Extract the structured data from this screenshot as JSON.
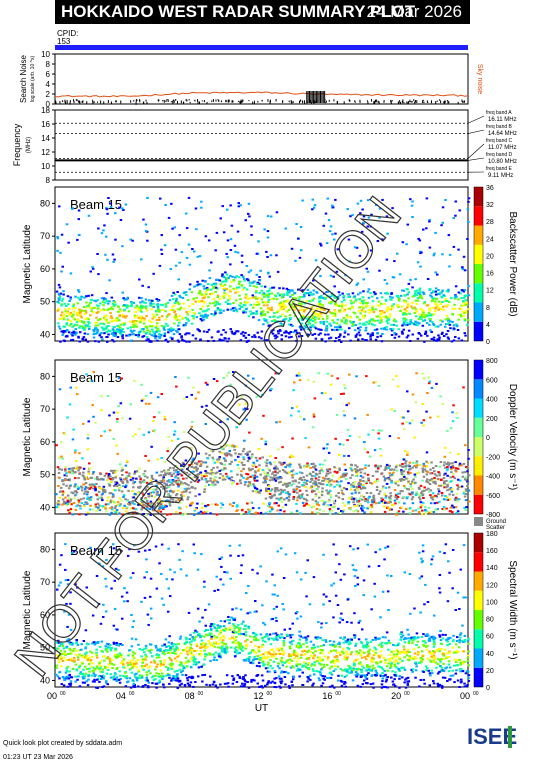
{
  "title": "HOKKAIDO WEST RADAR SUMMARY PLOT",
  "date": "24 Mar 2026",
  "cpid_label": "CPID:",
  "cpid_value": "153",
  "noise_panel": {
    "ylabel": "Search Noise",
    "ylabel_sub": "log scale (arb. 10 ^x)",
    "yticks": [
      "0",
      "2",
      "4",
      "6",
      "8",
      "10"
    ],
    "legend": "Sky noise"
  },
  "freq_panel": {
    "ylabel": "Frequency",
    "ylabel_sub": "(MHz)",
    "yticks": [
      "8",
      "10",
      "12",
      "14",
      "16",
      "18"
    ],
    "bands": [
      {
        "name": "freq band A",
        "value": "16.11 MHz"
      },
      {
        "name": "freq band B",
        "value": "14.64 MHz"
      },
      {
        "name": "freq band C",
        "value": "11.07 MHz"
      },
      {
        "name": "freq band D",
        "value": "10.80 MHz"
      },
      {
        "name": "freq band E",
        "value": "9.11 MHz"
      }
    ]
  },
  "panels": [
    {
      "beam": "Beam 15",
      "ylabel": "Magnetic Latitude",
      "colorbar_label": "Backscatter Power (dB)",
      "cbar_ticks": [
        "0",
        "4",
        "8",
        "12",
        "16",
        "20",
        "24",
        "28",
        "32",
        "36"
      ],
      "colors": [
        "#0000ff",
        "#00aaff",
        "#00ffaa",
        "#66ff00",
        "#ffff00",
        "#ffaa00",
        "#ff0000",
        "#aa0000"
      ]
    },
    {
      "beam": "Beam 15",
      "ylabel": "Magnetic Latitude",
      "colorbar_label": "Doppler Velocity (m s⁻¹)",
      "cbar_ticks": [
        "-800",
        "-600",
        "-400",
        "-200",
        "0",
        "200",
        "400",
        "600",
        "800"
      ],
      "colors": [
        "#ff0000",
        "#ff8800",
        "#ffee00",
        "#ccff66",
        "#66ff99",
        "#00ddff",
        "#0088ff",
        "#0000ff"
      ],
      "ground_scatter_label": "Ground",
      "ground_scatter_label2": "Scatter"
    },
    {
      "beam": "Beam 15",
      "ylabel": "Magnetic Latitude",
      "colorbar_label": "Spectral Width (m s⁻¹)",
      "cbar_ticks": [
        "0",
        "20",
        "40",
        "60",
        "80",
        "100",
        "120",
        "140",
        "160",
        "180"
      ],
      "colors": [
        "#0000ff",
        "#00aaff",
        "#00ffaa",
        "#66ff00",
        "#ffff00",
        "#ffaa00",
        "#ff0000",
        "#aa0000"
      ]
    }
  ],
  "xaxis": {
    "label": "UT",
    "ticks": [
      "00",
      "04",
      "08",
      "12",
      "16",
      "20",
      "00"
    ],
    "tick_sup": "00"
  },
  "watermark": "NOT FOR PUBLICATION",
  "footer_line1": "Quick look plot created by sddata.adm",
  "footer_line2": "01:23 UT 23 Mar 2026",
  "logo_text": "ISEE",
  "chart_data": [
    {
      "type": "line",
      "title": "Search Noise",
      "ylim": [
        0,
        10
      ],
      "series": [
        {
          "name": "Sky noise",
          "x": [
            0,
            4,
            8,
            12,
            16,
            20,
            24
          ],
          "values": [
            1.6,
            1.5,
            2.2,
            2.3,
            1.9,
            1.8,
            1.7
          ]
        }
      ]
    },
    {
      "type": "line",
      "title": "Frequency",
      "ylim": [
        8,
        18
      ],
      "series": [
        {
          "name": "freq",
          "x": [
            0,
            12,
            24
          ],
          "values": [
            10.8,
            10.8,
            10.8
          ]
        }
      ]
    },
    {
      "type": "heatmap",
      "title": "Backscatter Power (dB)",
      "xlim": [
        0,
        24
      ],
      "ylim": [
        38,
        85
      ],
      "zlim": [
        0,
        36
      ]
    },
    {
      "type": "heatmap",
      "title": "Doppler Velocity",
      "xlim": [
        0,
        24
      ],
      "ylim": [
        38,
        85
      ],
      "zlim": [
        -800,
        800
      ]
    },
    {
      "type": "heatmap",
      "title": "Spectral Width",
      "xlim": [
        0,
        24
      ],
      "ylim": [
        38,
        85
      ],
      "zlim": [
        0,
        180
      ]
    }
  ]
}
